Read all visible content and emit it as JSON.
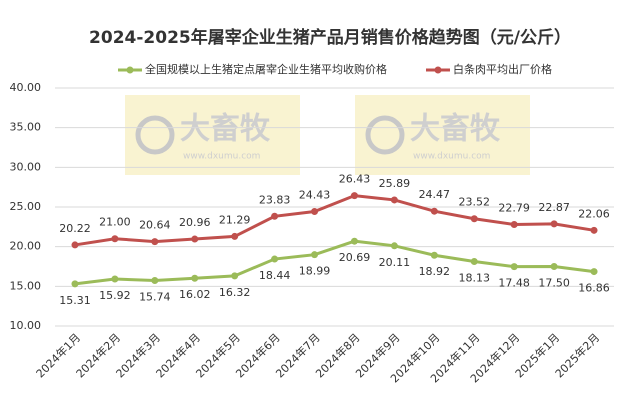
{
  "chart_data": {
    "type": "line",
    "title": "2024-2025年屠宰企业生猪产品月销售价格趋势图（元/公斤）",
    "categories": [
      "2024年1月",
      "2024年2月",
      "2024年3月",
      "2024年4月",
      "2024年5月",
      "2024年6月",
      "2024年7月",
      "2024年8月",
      "2024年9月",
      "2024年10月",
      "2024年11月",
      "2024年12月",
      "2025年1月",
      "2025年2月"
    ],
    "series": [
      {
        "name": "全国规模以上生猪定点屠宰企业生猪平均收购价格",
        "color": "#9bbb59",
        "values": [
          15.31,
          15.92,
          15.74,
          16.02,
          16.32,
          18.44,
          18.99,
          20.69,
          20.11,
          18.92,
          18.13,
          17.48,
          17.5,
          16.86
        ],
        "value_labels": [
          "15.31",
          "15.92",
          "15.74",
          "16.02",
          "16.32",
          "18.44",
          "18.99",
          "20.69",
          "20.11",
          "18.92",
          "18.13",
          "17.48",
          "17.50",
          "16.86"
        ]
      },
      {
        "name": "白条肉平均出厂价格",
        "color": "#c0504d",
        "values": [
          20.22,
          21,
          20.64,
          20.96,
          21.29,
          23.83,
          24.43,
          26.43,
          25.89,
          24.47,
          23.52,
          22.79,
          22.87,
          22.06
        ],
        "value_labels": [
          "20.22",
          "21.00",
          "20.64",
          "20.96",
          "21.29",
          "23.83",
          "24.43",
          "26.43",
          "25.89",
          "24.47",
          "23.52",
          "22.79",
          "22.87",
          "22.06"
        ]
      }
    ],
    "ylim": [
      10,
      40
    ],
    "yticks": [
      {
        "value": 10,
        "label": "10.00"
      },
      {
        "value": 15,
        "label": "15.00"
      },
      {
        "value": 20,
        "label": "20.00"
      },
      {
        "value": 25,
        "label": "25.00"
      },
      {
        "value": 30,
        "label": "30.00"
      },
      {
        "value": 35,
        "label": "35.00"
      },
      {
        "value": 40,
        "label": "40.00"
      }
    ],
    "grid": true,
    "legend": "top",
    "watermark": {
      "brand": "大畜牧",
      "url": "www.dxumu.com"
    }
  }
}
